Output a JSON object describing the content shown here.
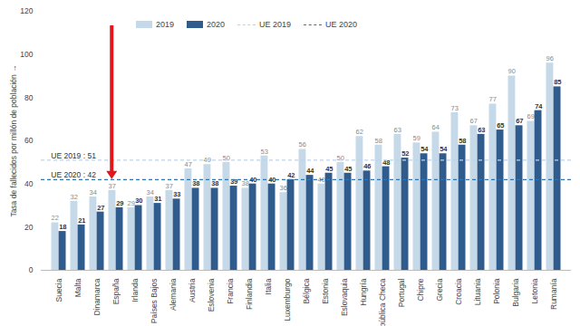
{
  "chart_data": {
    "type": "bar",
    "y_label": "Tasa de fallecidos por millón de población",
    "categories": [
      "Suecia",
      "Malta",
      "Dinamarca",
      "España",
      "Irlanda",
      "Países Bajos",
      "Alemania",
      "Austria",
      "Eslovenia",
      "Francia",
      "Finlandia",
      "Italia",
      "Luxemburgo",
      "Bélgica",
      "Estonia",
      "Eslovaquia",
      "Hungría",
      "República Checa",
      "Portugal",
      "Chipre",
      "Grecia",
      "Croacia",
      "Lituania",
      "Polonia",
      "Bulgaria",
      "Letonia",
      "Rumanía"
    ],
    "series": [
      {
        "name": "2019",
        "color": "#c6d9e9",
        "values": [
          22,
          32,
          34,
          37,
          29,
          34,
          37,
          47,
          49,
          50,
          38,
          53,
          36,
          56,
          40,
          50,
          62,
          58,
          63,
          59,
          64,
          73,
          67,
          77,
          90,
          69,
          96
        ]
      },
      {
        "name": "2020",
        "color": "#2f5b8d",
        "values": [
          18,
          21,
          27,
          29,
          30,
          31,
          33,
          38,
          38,
          39,
          40,
          40,
          42,
          44,
          45,
          45,
          46,
          48,
          52,
          54,
          54,
          58,
          63,
          65,
          67,
          74,
          85
        ]
      }
    ],
    "reference_lines": [
      {
        "name": "UE 2019",
        "value": 51,
        "label": "UE 2019 : 51",
        "color": "#bcd4ea",
        "line_style": "dashed"
      },
      {
        "name": "UE 2020",
        "value": 42,
        "label": "UE 2020 : 42",
        "color": "#2e75b6",
        "line_style": "dashed"
      }
    ],
    "arrow": {
      "category": "España",
      "color": "#e3141c"
    },
    "ylim": [
      0,
      120
    ],
    "yticks": [
      0,
      20,
      40,
      60,
      80,
      100,
      120
    ],
    "data_labels": true,
    "legend": "top-left",
    "grid": false
  }
}
